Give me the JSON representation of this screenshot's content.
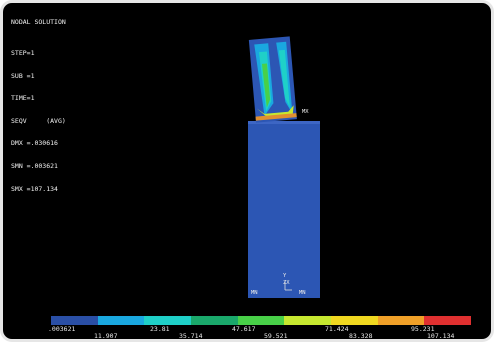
{
  "header": {
    "title": "NODAL SOLUTION",
    "lines": [
      "STEP=1",
      "SUB =1",
      "TIME=1",
      "SEQV     (AVG)",
      "DMX =.030616",
      "SMN =.003621",
      "SMX =107.134"
    ]
  },
  "plot": {
    "markers": {
      "max": "MX",
      "min_left": "MN",
      "min_right": "MN",
      "axis_y": "Y",
      "axis_zx": "ZX"
    }
  },
  "legend": {
    "colors": [
      "#2a4fa6",
      "#1aa8e0",
      "#1fd0c8",
      "#1aa86b",
      "#48d048",
      "#c6e830",
      "#f0d820",
      "#f0a028",
      "#e03030"
    ],
    "top_labels": [
      ".003621",
      "23.81",
      "47.617",
      "71.424",
      "95.231"
    ],
    "bottom_labels": [
      "11.907",
      "35.714",
      "59.521",
      "83.328",
      "107.134"
    ]
  },
  "colors": {
    "background": "#000000",
    "base_block": "#2c56b4"
  }
}
